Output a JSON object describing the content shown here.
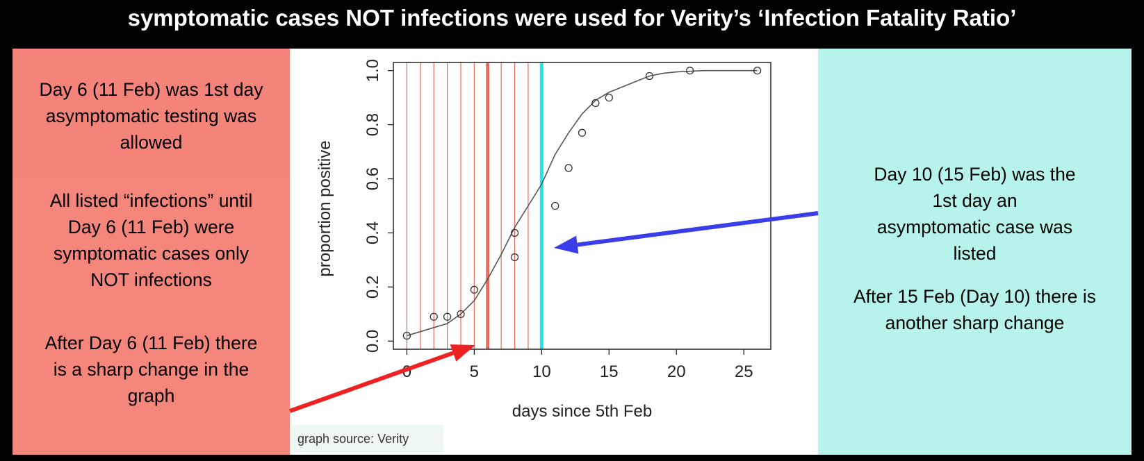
{
  "title": "symptomatic cases NOT infections were used for Verity’s ‘Infection Fatality Ratio’",
  "left_panel": {
    "block1": [
      "Day 6 (11 Feb) was 1st day",
      "asymptomatic testing was",
      "allowed"
    ],
    "block2": [
      "All listed “infections” until",
      "Day 6 (11 Feb) were",
      "symptomatic cases only",
      "NOT infections"
    ],
    "block3": [
      "After Day 6 (11 Feb) there",
      "is a sharp change in the",
      "graph"
    ]
  },
  "right_panel": {
    "block1": [
      "Day 10 (15 Feb) was the",
      "1st day an",
      "asymptomatic case was",
      "listed"
    ],
    "block2": [
      "After 15 Feb (Day 10) there is",
      "another sharp change"
    ]
  },
  "source_label": "graph source: Verity",
  "colors": {
    "left_bg": "#f5867b",
    "right_bg": "#b6f4eb",
    "red_line": "#e8685c",
    "cyan_line": "#1fe5e8",
    "red_arrow": "#ee2222",
    "blue_arrow": "#3a3ee8"
  },
  "chart_data": {
    "type": "scatter",
    "xlabel": "days since 5th Feb",
    "ylabel": "proportion positive",
    "xlim": [
      -1,
      27
    ],
    "ylim": [
      -0.03,
      1.03
    ],
    "xticks": [
      0,
      5,
      10,
      15,
      20,
      25
    ],
    "yticks": [
      "0.0",
      "0.2",
      "0.4",
      "0.6",
      "0.8",
      "1.0"
    ],
    "points": [
      [
        0,
        0.02
      ],
      [
        2,
        0.09
      ],
      [
        3,
        0.09
      ],
      [
        4,
        0.1
      ],
      [
        5,
        0.19
      ],
      [
        8,
        0.4
      ],
      [
        8,
        0.31
      ],
      [
        11,
        0.5
      ],
      [
        12,
        0.64
      ],
      [
        13,
        0.77
      ],
      [
        14,
        0.88
      ],
      [
        15,
        0.9
      ],
      [
        18,
        0.98
      ],
      [
        21,
        1.0
      ],
      [
        26,
        1.0
      ]
    ],
    "fit_curve": [
      [
        0,
        0.02
      ],
      [
        1,
        0.035
      ],
      [
        2,
        0.05
      ],
      [
        3,
        0.065
      ],
      [
        4,
        0.1
      ],
      [
        5,
        0.15
      ],
      [
        6,
        0.23
      ],
      [
        7,
        0.32
      ],
      [
        8,
        0.42
      ],
      [
        9,
        0.5
      ],
      [
        10,
        0.58
      ],
      [
        11,
        0.69
      ],
      [
        12,
        0.77
      ],
      [
        13,
        0.84
      ],
      [
        14,
        0.89
      ],
      [
        15,
        0.92
      ],
      [
        16,
        0.94
      ],
      [
        17,
        0.96
      ],
      [
        18,
        0.98
      ],
      [
        19,
        0.99
      ],
      [
        20,
        0.995
      ],
      [
        22,
        1.0
      ],
      [
        26,
        1.0
      ]
    ],
    "thin_red_lines": [
      0,
      1,
      2,
      3,
      4,
      5,
      7,
      8,
      9
    ],
    "thick_red_line": 6,
    "cyan_line": 10
  }
}
